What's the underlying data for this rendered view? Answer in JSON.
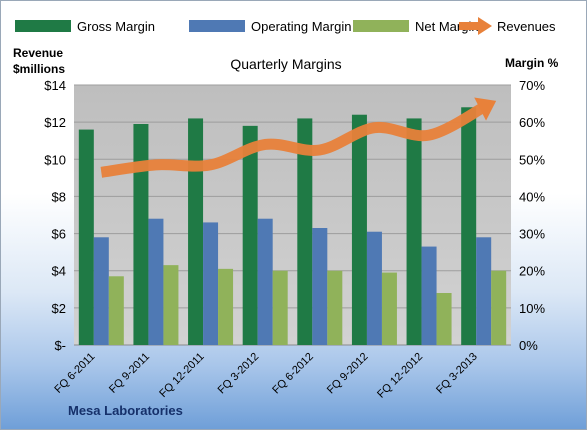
{
  "chart_data": {
    "type": "bar",
    "title": "Quarterly Margins",
    "left_axis_label": [
      "Revenue",
      "$millions"
    ],
    "right_axis_label": "Margin %",
    "footer": "Mesa Laboratories",
    "categories": [
      "FQ 6-2011",
      "FQ 9-2011",
      "FQ 12-2011",
      "FQ 3-2012",
      "FQ 6-2012",
      "FQ 9-2012",
      "FQ 12-2012",
      "FQ 3-2013"
    ],
    "left_axis": {
      "min": 0,
      "max": 14,
      "step": 2,
      "tick_labels": [
        "$-",
        "$2",
        "$4",
        "$6",
        "$8",
        "$10",
        "$12",
        "$14"
      ]
    },
    "right_axis": {
      "min": 0,
      "max": 70,
      "step": 10,
      "tick_labels": [
        "0%",
        "10%",
        "20%",
        "30%",
        "40%",
        "50%",
        "60%",
        "70%"
      ]
    },
    "series": [
      {
        "name": "Gross Margin",
        "kind": "bar",
        "axis": "right",
        "color": "#1f7a45",
        "values": [
          58,
          59.5,
          61,
          59,
          61,
          62,
          61,
          64
        ]
      },
      {
        "name": "Operating Margin",
        "kind": "bar",
        "axis": "right",
        "color": "#4f79b4",
        "values": [
          29,
          34,
          33,
          34,
          31.5,
          30.5,
          26.5,
          29
        ]
      },
      {
        "name": "Net Margin",
        "kind": "bar",
        "axis": "right",
        "color": "#90b25a",
        "values": [
          18.5,
          21.5,
          20.5,
          20,
          20,
          19.5,
          14,
          20
        ]
      },
      {
        "name": "Revenues",
        "kind": "line",
        "axis": "left",
        "color": "#e8813a",
        "values": [
          9.3,
          9.7,
          9.7,
          10.8,
          10.5,
          11.7,
          11.3,
          12.8
        ]
      }
    ],
    "grid": true,
    "legend_position": "top"
  }
}
